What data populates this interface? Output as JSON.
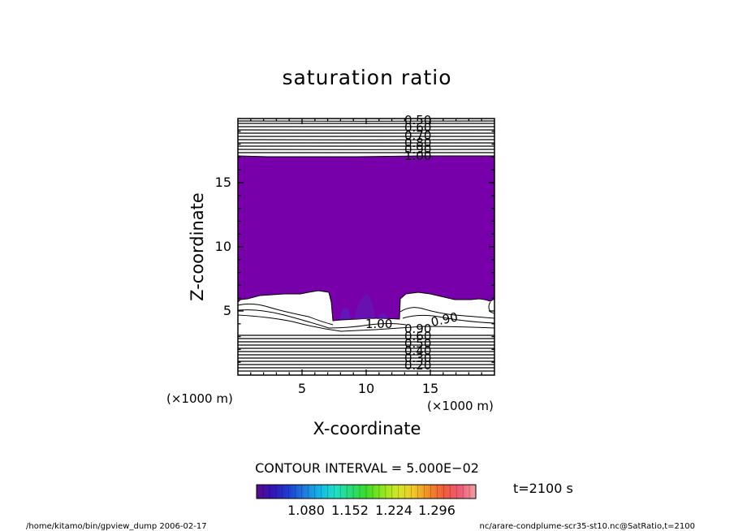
{
  "chart_data": {
    "type": "contour",
    "title": "saturation ratio",
    "xlabel": "X-coordinate",
    "ylabel": "Z-coordinate",
    "x_unit": "(×1000 m)",
    "z_unit": "(×1000 m)",
    "xlim": [
      0,
      20
    ],
    "ylim": [
      0,
      20
    ],
    "x_ticks": [
      "5",
      "10",
      "15"
    ],
    "y_ticks": [
      "5",
      "10",
      "15"
    ],
    "contour_interval_text": "CONTOUR INTERVAL = 5.000E−02",
    "time_text": "t=2100 s",
    "colorbar_labels": [
      "1.080",
      "1.152",
      "1.224",
      "1.296"
    ],
    "colorbar_colors": [
      "#5a0a8c",
      "#3214b4",
      "#1e3cd2",
      "#1e78dc",
      "#14b4e6",
      "#1ee0c8",
      "#28dc78",
      "#3cdc28",
      "#8ce61e",
      "#d2e628",
      "#f0c828",
      "#f08c28",
      "#f05a3c",
      "#f05a78",
      "#f0a0a0"
    ],
    "fill_color": "#7700aa",
    "upper_contour_labels": [
      "0.50",
      "0.60",
      "0.70",
      "0.80",
      "0.90",
      "1.00"
    ],
    "lower_contour_labels": [
      "0.20",
      "0.30",
      "0.40",
      "0.50",
      "0.60",
      "0.90"
    ],
    "mid_contour_labels": [
      "1.00",
      "0.90"
    ],
    "footer_left": "/home/kitamo/bin/gpview_dump  2006-02-17",
    "footer_right": "nc/arare-condplume-scr35-st10.nc@SatRatio,t=2100"
  }
}
